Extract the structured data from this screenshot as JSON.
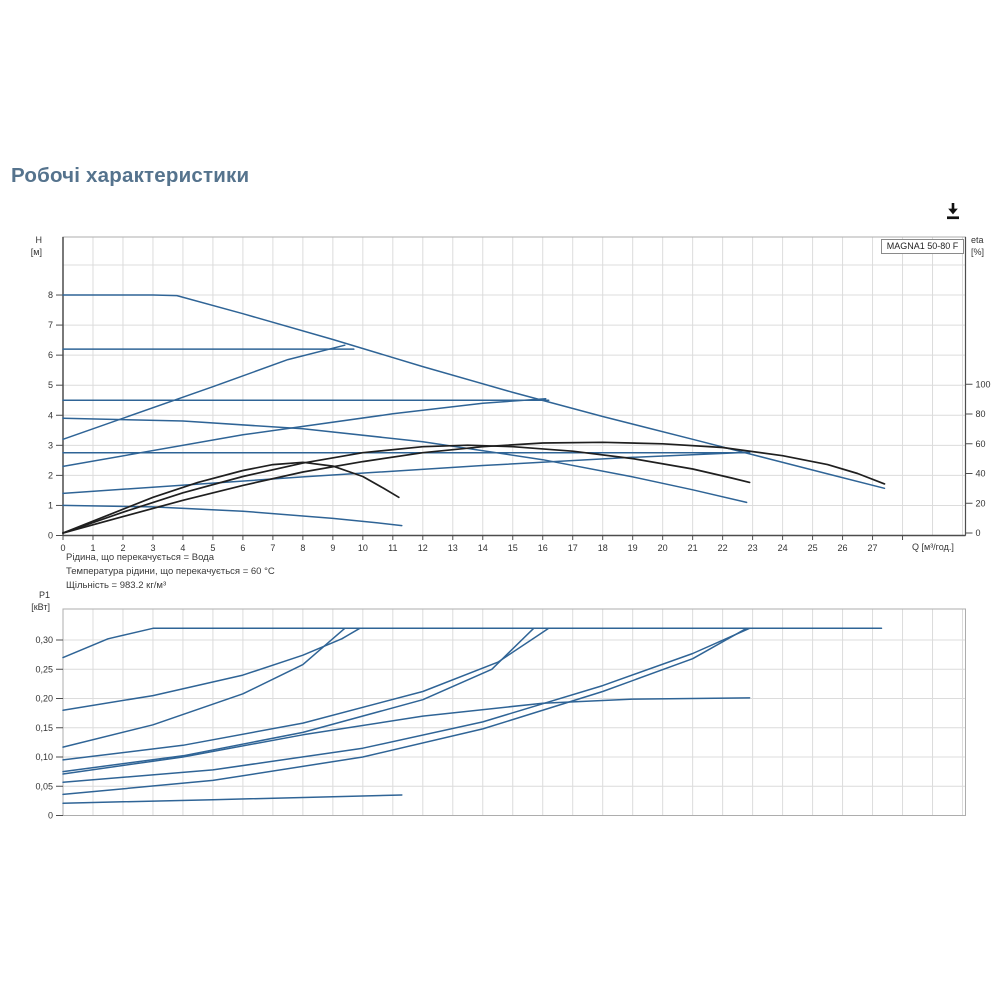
{
  "page": {
    "title": "Робочі характеристики"
  },
  "toolbar": {
    "download_icon": "download-icon"
  },
  "pump_label": "MAGNA1 50-80 F",
  "info_lines": [
    "Рідина, що перекачується = Вода",
    "Температура рідини, що перекачується = 60 °C",
    "Щільність = 983.2 кг/м³"
  ],
  "colors": {
    "blue": "#2F6496",
    "black": "#1f1f1f",
    "grid": "#dcdcdc",
    "border": "#adadad",
    "axis": "#4d4d4d",
    "tick_text": "#333333",
    "title": "#55738D"
  },
  "chart_data": [
    {
      "type": "line",
      "title": "Pump curves H-Q with efficiency",
      "xlabel": "Q [м³/год.]",
      "ylabel_line1": "H",
      "ylabel_line2": "[м]",
      "y2label_line1": "eta",
      "y2label_line2": "[%]",
      "xlim": [
        0,
        30.1
      ],
      "ylim": [
        0,
        9.93
      ],
      "y2lim": [
        0,
        199
      ],
      "grid": true,
      "grid_y": [
        1,
        2,
        3,
        4,
        5,
        6,
        7,
        8,
        9
      ],
      "x_ticks": [
        {
          "v": 0,
          "label": "0"
        },
        {
          "v": 1,
          "label": "1"
        },
        {
          "v": 2,
          "label": "2"
        },
        {
          "v": 3,
          "label": "3"
        },
        {
          "v": 4,
          "label": "4"
        },
        {
          "v": 5,
          "label": "5"
        },
        {
          "v": 6,
          "label": "6"
        },
        {
          "v": 7,
          "label": "7"
        },
        {
          "v": 8,
          "label": "8"
        },
        {
          "v": 9,
          "label": "9"
        },
        {
          "v": 10,
          "label": "10"
        },
        {
          "v": 11,
          "label": "11"
        },
        {
          "v": 12,
          "label": "12"
        },
        {
          "v": 13,
          "label": "13"
        },
        {
          "v": 14,
          "label": "14"
        },
        {
          "v": 15,
          "label": "15"
        },
        {
          "v": 16,
          "label": "16"
        },
        {
          "v": 17,
          "label": "17"
        },
        {
          "v": 18,
          "label": "18"
        },
        {
          "v": 19,
          "label": "19"
        },
        {
          "v": 20,
          "label": "20"
        },
        {
          "v": 21,
          "label": "21"
        },
        {
          "v": 22,
          "label": "22"
        },
        {
          "v": 23,
          "label": "23"
        },
        {
          "v": 24,
          "label": "24"
        },
        {
          "v": 25,
          "label": "25"
        },
        {
          "v": 26,
          "label": "26"
        },
        {
          "v": 27,
          "label": "27"
        },
        {
          "v": 28,
          "label": ""
        }
      ],
      "y_ticks": [
        {
          "v": 0,
          "label": "0"
        },
        {
          "v": 1,
          "label": "1"
        },
        {
          "v": 2,
          "label": "2"
        },
        {
          "v": 3,
          "label": "3"
        },
        {
          "v": 4,
          "label": "4"
        },
        {
          "v": 5,
          "label": "5"
        },
        {
          "v": 6,
          "label": "6"
        },
        {
          "v": 7,
          "label": "7"
        },
        {
          "v": 8,
          "label": "8"
        }
      ],
      "y2_ticks": [
        {
          "v": 0,
          "label": "0"
        },
        {
          "v": 20,
          "label": "20"
        },
        {
          "v": 40,
          "label": "40"
        },
        {
          "v": 60,
          "label": "60"
        },
        {
          "v": 80,
          "label": "80"
        },
        {
          "v": 100,
          "label": "100"
        }
      ],
      "series": [
        {
          "name": "speed-III-max-curve",
          "color": "blue",
          "axis": "y",
          "points": [
            [
              0,
              8
            ],
            [
              3,
              8
            ],
            [
              3.8,
              7.98
            ],
            [
              6,
              7.38
            ],
            [
              9,
              6.52
            ],
            [
              12,
              5.62
            ],
            [
              15,
              4.76
            ],
            [
              18,
              3.96
            ],
            [
              21,
              3.2
            ],
            [
              23.5,
              2.56
            ],
            [
              25.5,
              2.05
            ],
            [
              27.4,
              1.57
            ]
          ]
        },
        {
          "name": "speed-II-curve",
          "color": "blue",
          "axis": "y",
          "points": [
            [
              0,
              3.9
            ],
            [
              4,
              3.81
            ],
            [
              8,
              3.55
            ],
            [
              12,
              3.12
            ],
            [
              16,
              2.52
            ],
            [
              19,
              1.95
            ],
            [
              21,
              1.52
            ],
            [
              22.8,
              1.1
            ]
          ]
        },
        {
          "name": "speed-I-min-curve",
          "color": "blue",
          "axis": "y",
          "points": [
            [
              0,
              1.0
            ],
            [
              3,
              0.95
            ],
            [
              6,
              0.81
            ],
            [
              9,
              0.57
            ],
            [
              10.5,
              0.42
            ],
            [
              11.3,
              0.33
            ]
          ]
        },
        {
          "name": "const-pressure-3",
          "color": "blue",
          "axis": "y",
          "points": [
            [
              0,
              6.2
            ],
            [
              9.7,
              6.2
            ]
          ]
        },
        {
          "name": "const-pressure-2",
          "color": "blue",
          "axis": "y",
          "points": [
            [
              0,
              4.5
            ],
            [
              16.2,
              4.5
            ]
          ]
        },
        {
          "name": "const-pressure-1",
          "color": "blue",
          "axis": "y",
          "points": [
            [
              0,
              2.75
            ],
            [
              22.9,
              2.75
            ]
          ]
        },
        {
          "name": "prop-pressure-3",
          "color": "blue",
          "axis": "y",
          "points": [
            [
              0,
              3.2
            ],
            [
              5,
              4.95
            ],
            [
              7.5,
              5.85
            ],
            [
              9.4,
              6.33
            ]
          ]
        },
        {
          "name": "prop-pressure-2",
          "color": "blue",
          "axis": "y",
          "points": [
            [
              0,
              2.3
            ],
            [
              6,
              3.35
            ],
            [
              11,
              4.05
            ],
            [
              14,
              4.4
            ],
            [
              16.1,
              4.55
            ]
          ]
        },
        {
          "name": "prop-pressure-1",
          "color": "blue",
          "axis": "y",
          "points": [
            [
              0,
              1.4
            ],
            [
              8,
              1.95
            ],
            [
              14,
              2.33
            ],
            [
              19,
              2.6
            ],
            [
              22.9,
              2.77
            ]
          ]
        },
        {
          "name": "eta-speed-III",
          "color": "black",
          "axis": "y2",
          "points": [
            [
              0,
              0
            ],
            [
              2,
              11
            ],
            [
              4,
              22
            ],
            [
              6,
              32
            ],
            [
              8,
              41
            ],
            [
              10,
              48
            ],
            [
              12,
              54
            ],
            [
              14,
              58
            ],
            [
              16,
              60.5
            ],
            [
              18,
              61
            ],
            [
              20,
              60
            ],
            [
              22,
              57.5
            ],
            [
              24,
              52
            ],
            [
              25.5,
              46
            ],
            [
              26.5,
              40
            ],
            [
              27.4,
              33
            ]
          ]
        },
        {
          "name": "eta-speed-II",
          "color": "black",
          "axis": "y2",
          "points": [
            [
              0,
              0
            ],
            [
              2,
              14
            ],
            [
              4,
              27
            ],
            [
              6,
              38
            ],
            [
              8,
              47
            ],
            [
              10,
              54
            ],
            [
              12,
              58
            ],
            [
              13.5,
              59
            ],
            [
              15,
              58
            ],
            [
              17,
              55
            ],
            [
              19,
              50
            ],
            [
              21,
              43
            ],
            [
              22.3,
              37
            ],
            [
              22.9,
              34
            ]
          ]
        },
        {
          "name": "eta-speed-I",
          "color": "black",
          "axis": "y2",
          "points": [
            [
              0,
              0
            ],
            [
              1.5,
              12
            ],
            [
              3,
              24
            ],
            [
              4.5,
              34
            ],
            [
              6,
              42
            ],
            [
              7,
              46
            ],
            [
              8,
              47.5
            ],
            [
              9,
              45
            ],
            [
              10,
              38
            ],
            [
              10.7,
              30
            ],
            [
              11.2,
              24
            ]
          ]
        }
      ]
    },
    {
      "type": "line",
      "title": "Power input P1",
      "xlabel": "",
      "ylabel_line1": "P1",
      "ylabel_line2": "[кВт]",
      "xlim": [
        0,
        30.1
      ],
      "ylim": [
        0,
        0.353
      ],
      "grid": true,
      "grid_y": [
        0.05,
        0.1,
        0.15,
        0.2,
        0.25,
        0.3
      ],
      "x_ticks": [],
      "y_ticks": [
        {
          "v": 0,
          "label": "0"
        },
        {
          "v": 0.05,
          "label": "0,05"
        },
        {
          "v": 0.1,
          "label": "0,10"
        },
        {
          "v": 0.15,
          "label": "0,15"
        },
        {
          "v": 0.2,
          "label": "0,20"
        },
        {
          "v": 0.25,
          "label": "0,25"
        },
        {
          "v": 0.3,
          "label": "0,30"
        }
      ],
      "y2_ticks": [],
      "series": [
        {
          "name": "p1-speed-III-max",
          "color": "blue",
          "axis": "y",
          "points": [
            [
              0,
              0.27
            ],
            [
              1.5,
              0.302
            ],
            [
              3,
              0.32
            ],
            [
              27.3,
              0.32
            ]
          ]
        },
        {
          "name": "p1-const-pressure-3",
          "color": "blue",
          "axis": "y",
          "points": [
            [
              0,
              0.18
            ],
            [
              3,
              0.205
            ],
            [
              6,
              0.24
            ],
            [
              8,
              0.274
            ],
            [
              9.3,
              0.302
            ],
            [
              9.9,
              0.32
            ]
          ]
        },
        {
          "name": "p1-prop-pressure-3",
          "color": "blue",
          "axis": "y",
          "points": [
            [
              0,
              0.117
            ],
            [
              3,
              0.155
            ],
            [
              6,
              0.208
            ],
            [
              8,
              0.258
            ],
            [
              9.4,
              0.32
            ]
          ]
        },
        {
          "name": "p1-const-pressure-2",
          "color": "blue",
          "axis": "y",
          "points": [
            [
              0,
              0.095
            ],
            [
              4,
              0.12
            ],
            [
              8,
              0.158
            ],
            [
              12,
              0.212
            ],
            [
              14.5,
              0.262
            ],
            [
              16.2,
              0.32
            ]
          ]
        },
        {
          "name": "p1-prop-pressure-2",
          "color": "blue",
          "axis": "y",
          "points": [
            [
              0,
              0.075
            ],
            [
              4,
              0.102
            ],
            [
              8,
              0.142
            ],
            [
              12,
              0.198
            ],
            [
              14.3,
              0.25
            ],
            [
              15.7,
              0.32
            ]
          ]
        },
        {
          "name": "p1-speed-II",
          "color": "blue",
          "axis": "y",
          "points": [
            [
              0,
              0.071
            ],
            [
              4,
              0.1
            ],
            [
              8,
              0.138
            ],
            [
              12,
              0.17
            ],
            [
              16,
              0.192
            ],
            [
              19,
              0.199
            ],
            [
              22.9,
              0.201
            ]
          ]
        },
        {
          "name": "p1-const-pressure-1",
          "color": "blue",
          "axis": "y",
          "points": [
            [
              0,
              0.057
            ],
            [
              5,
              0.078
            ],
            [
              10,
              0.115
            ],
            [
              14,
              0.16
            ],
            [
              18,
              0.222
            ],
            [
              21,
              0.277
            ],
            [
              22.9,
              0.32
            ]
          ]
        },
        {
          "name": "p1-prop-pressure-1",
          "color": "blue",
          "axis": "y",
          "points": [
            [
              0,
              0.036
            ],
            [
              5,
              0.06
            ],
            [
              10,
              0.1
            ],
            [
              14,
              0.148
            ],
            [
              18,
              0.212
            ],
            [
              21,
              0.268
            ],
            [
              22.8,
              0.32
            ]
          ]
        },
        {
          "name": "p1-speed-I-min",
          "color": "blue",
          "axis": "y",
          "points": [
            [
              0,
              0.021
            ],
            [
              5,
              0.027
            ],
            [
              9,
              0.032
            ],
            [
              11.3,
              0.035
            ]
          ]
        }
      ]
    }
  ]
}
